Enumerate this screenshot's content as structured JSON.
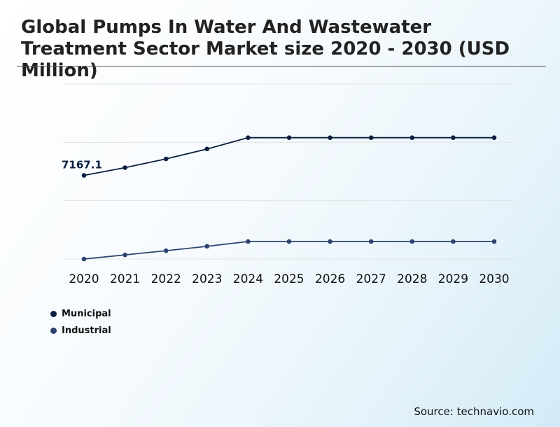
{
  "chart_data": {
    "type": "line",
    "title": "Global Pumps In Water And Wastewater Treatment Sector Market size 2020 - 2030 (USD Million)",
    "xlabel": "",
    "ylabel": "",
    "categories": [
      "2020",
      "2021",
      "2022",
      "2023",
      "2024",
      "2025",
      "2026",
      "2027",
      "2028",
      "2029",
      "2030"
    ],
    "ylim": [
      0,
      15000
    ],
    "grid": true,
    "series": [
      {
        "name": "Municipal",
        "color": "#0b1f3f",
        "values": [
          7167.1,
          7830,
          8580,
          9430,
          10400,
          10400,
          10400,
          10400,
          10400,
          10400,
          10400
        ]
      },
      {
        "name": "Industrial",
        "color": "#2e4470",
        "values": [
          0,
          350,
          710,
          1090,
          1500,
          1500,
          1500,
          1500,
          1500,
          1500,
          1500
        ]
      }
    ],
    "annotations": [
      {
        "series": 0,
        "index": 0,
        "text": "7167.1"
      }
    ],
    "legend_position": "bottom-left",
    "source": "Source: technavio.com"
  }
}
